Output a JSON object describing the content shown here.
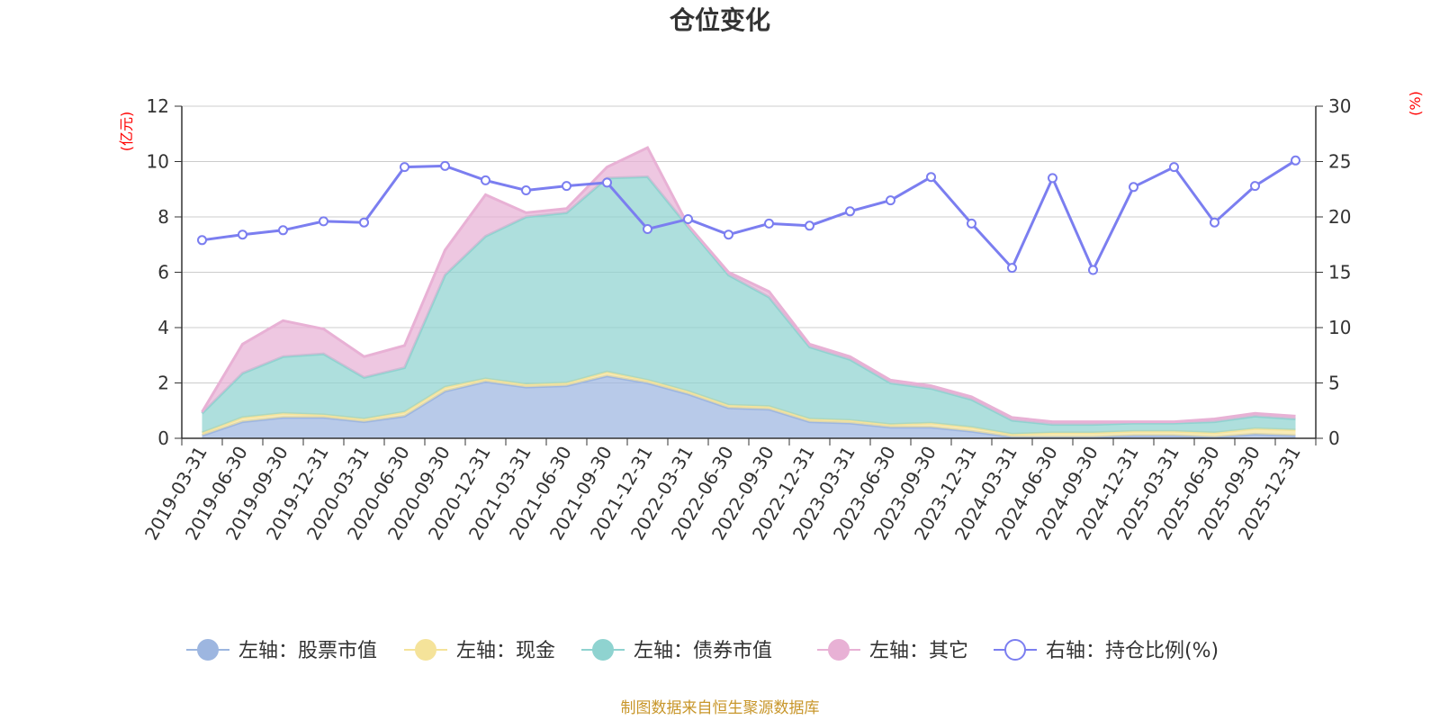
{
  "chart_data": {
    "type": "area",
    "title": "仓位变化",
    "left_axis_unit": "(亿元)",
    "right_axis_unit": "(%)",
    "left_ylim": [
      0,
      12
    ],
    "left_ticks": [
      "0",
      "2",
      "4",
      "6",
      "8",
      "10",
      "12"
    ],
    "right_ylim": [
      0,
      30
    ],
    "right_ticks": [
      "0",
      "5",
      "10",
      "15",
      "20",
      "25",
      "30"
    ],
    "categories": [
      "2019-03-31",
      "2019-06-30",
      "2019-09-30",
      "2019-12-31",
      "2020-03-31",
      "2020-06-30",
      "2020-09-30",
      "2020-12-31",
      "2021-03-31",
      "2021-06-30",
      "2021-09-30",
      "2021-12-31",
      "2022-03-31",
      "2022-06-30",
      "2022-09-30",
      "2022-12-31",
      "2023-03-31",
      "2023-06-30",
      "2023-09-30",
      "2023-12-31",
      "2024-03-31",
      "2024-06-30",
      "2024-09-30",
      "2024-12-31",
      "2025-03-31",
      "2025-06-30",
      "2025-09-30",
      "2025-12-31"
    ],
    "stacked_series": [
      {
        "name": "左轴：股票市值",
        "color": "#9db6e0",
        "values": [
          0.1,
          0.6,
          0.75,
          0.75,
          0.6,
          0.8,
          1.7,
          2.05,
          1.85,
          1.9,
          2.25,
          2.0,
          1.6,
          1.1,
          1.05,
          0.6,
          0.55,
          0.4,
          0.4,
          0.25,
          0.05,
          0.05,
          0.05,
          0.1,
          0.1,
          0.05,
          0.15,
          0.1
        ]
      },
      {
        "name": "左轴：现金",
        "color": "#f5e39a",
        "values": [
          0.1,
          0.15,
          0.15,
          0.1,
          0.1,
          0.15,
          0.15,
          0.1,
          0.1,
          0.1,
          0.15,
          0.1,
          0.1,
          0.1,
          0.1,
          0.1,
          0.1,
          0.1,
          0.15,
          0.15,
          0.1,
          0.15,
          0.15,
          0.15,
          0.15,
          0.15,
          0.2,
          0.2
        ]
      },
      {
        "name": "左轴：债券市值",
        "color": "#8fd3d0",
        "values": [
          0.7,
          1.6,
          2.05,
          2.2,
          1.5,
          1.6,
          4.05,
          5.15,
          6.05,
          6.15,
          7.0,
          7.35,
          5.95,
          4.7,
          3.95,
          2.6,
          2.2,
          1.5,
          1.25,
          1.0,
          0.5,
          0.3,
          0.3,
          0.3,
          0.3,
          0.4,
          0.45,
          0.4
        ]
      },
      {
        "name": "左轴：其它",
        "color": "#e8b1d5",
        "values": [
          0.05,
          1.05,
          1.3,
          0.9,
          0.75,
          0.8,
          0.9,
          1.5,
          0.15,
          0.15,
          0.4,
          1.05,
          0.05,
          0.1,
          0.2,
          0.1,
          0.1,
          0.1,
          0.1,
          0.1,
          0.1,
          0.1,
          0.1,
          0.05,
          0.05,
          0.1,
          0.1,
          0.1
        ]
      }
    ],
    "line_series": {
      "name": "右轴：持仓比例(%)",
      "color": "#7b7ef0",
      "values": [
        17.9,
        18.4,
        18.8,
        19.6,
        19.5,
        24.5,
        24.6,
        23.3,
        22.4,
        22.8,
        23.1,
        18.9,
        19.8,
        18.4,
        19.4,
        19.2,
        20.5,
        21.5,
        23.6,
        19.4,
        15.4,
        23.5,
        15.2,
        22.7,
        24.5,
        19.5,
        22.8,
        25.1
      ]
    },
    "footnote": "制图数据来自恒生聚源数据库"
  }
}
